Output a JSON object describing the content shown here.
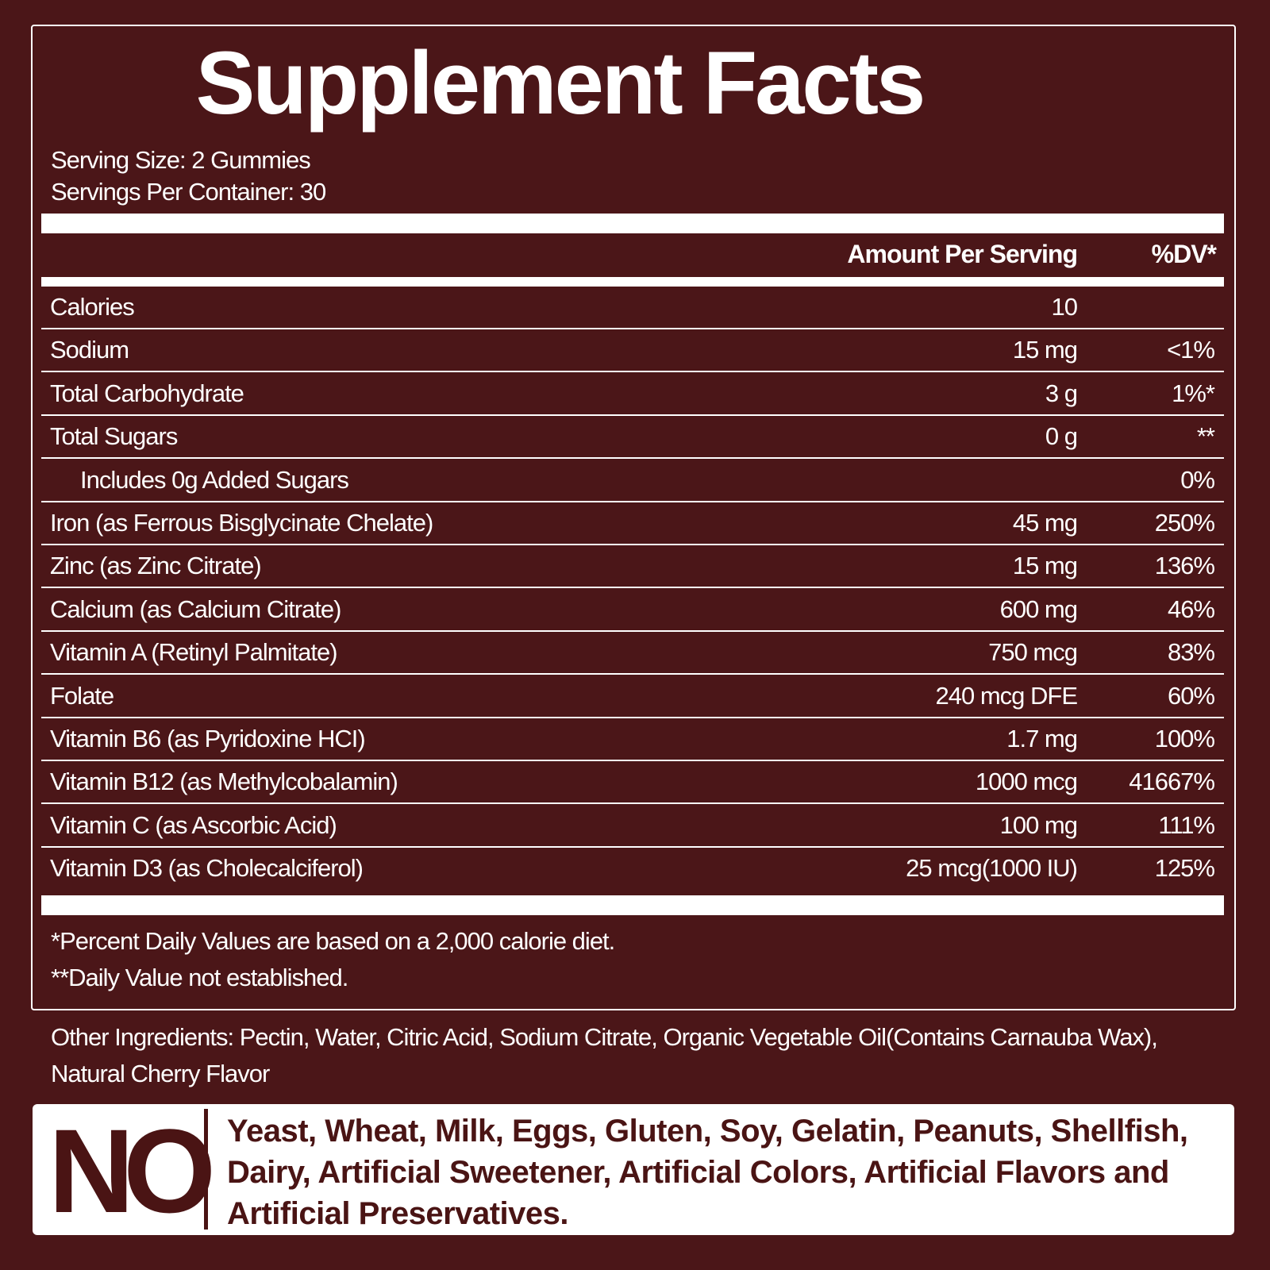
{
  "header": {
    "title": "Supplement Facts",
    "serving_size": "Serving Size: 2 Gummies",
    "servings_per_container": "Servings Per Container: 30"
  },
  "table": {
    "columns": [
      "Amount Per Serving",
      "%DV*"
    ],
    "rows": [
      {
        "name": "Calories",
        "amount": "10"
      },
      {
        "name": "Sodium",
        "amount": "15 mg",
        "dv": "<1%"
      },
      {
        "name": "Total Carbohydrate",
        "amount": "3 g",
        "dv": "1%*"
      },
      {
        "name": "Total Sugars",
        "amount": "0 g",
        "dv": "**"
      },
      {
        "name": "Includes 0g Added Sugars",
        "dv": "0%",
        "indent": true
      },
      {
        "name": "Iron (as Ferrous Bisglycinate Chelate)",
        "amount": "45 mg",
        "dv": "250%"
      },
      {
        "name": "Zinc (as Zinc Citrate)",
        "amount": "15 mg",
        "dv": "136%"
      },
      {
        "name": "Calcium (as Calcium Citrate)",
        "amount": "600 mg",
        "dv": "46%"
      },
      {
        "name": "Vitamin A (Retinyl Palmitate)",
        "amount": "750 mcg",
        "dv": "83%"
      },
      {
        "name": "Folate",
        "amount": "240 mcg DFE",
        "dv": "60%"
      },
      {
        "name": "Vitamin B6 (as Pyridoxine HCI)",
        "amount": "1.7 mg",
        "dv": "100%"
      },
      {
        "name": "Vitamin B12 (as Methylcobalamin)",
        "amount": "1000 mcg",
        "dv": "41667%"
      },
      {
        "name": "Vitamin C (as Ascorbic Acid)",
        "amount": "100 mg",
        "dv": "111%"
      },
      {
        "name": "Vitamin D3 (as Cholecalciferol)",
        "amount": "25 mcg(1000 IU)",
        "dv": "125%"
      }
    ]
  },
  "footnotes": [
    "*Percent Daily Values are based on a 2,000 calorie diet.",
    "**Daily Value not established."
  ],
  "other_ingredients": "Other Ingredients: Pectin, Water, Citric Acid, Sodium Citrate, Organic Vegetable Oil(Contains Carnauba Wax), Natural Cherry Flavor",
  "free_from": {
    "label": "NO",
    "text": "Yeast, Wheat, Milk, Eggs, Gluten, Soy, Gelatin, Peanuts, Shellfish, Dairy, Artificial Sweetener, Artificial Colors, Artificial Flavors and Artificial Preservatives."
  }
}
